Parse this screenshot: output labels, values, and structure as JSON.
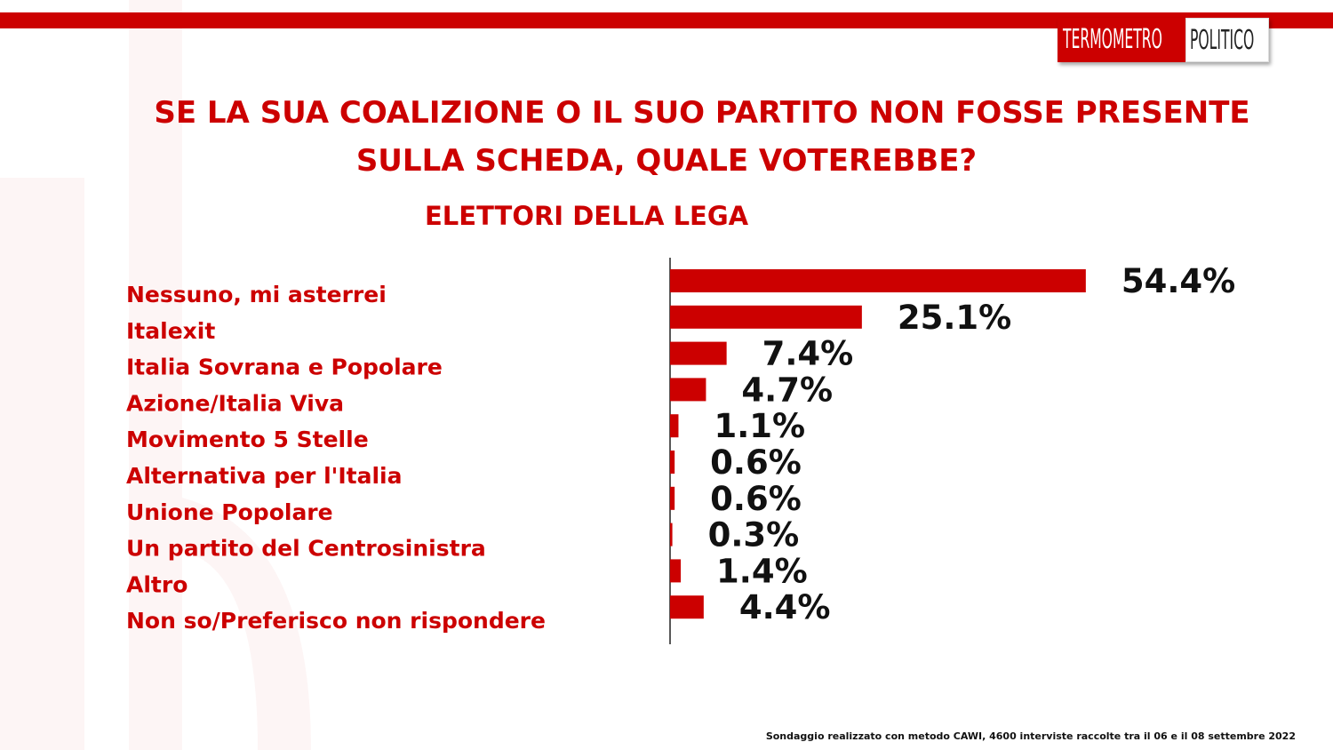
{
  "header": {
    "logo_left": "TERMOMETRO",
    "logo_right": "POLITICO",
    "title": "SE LA SUA COALIZIONE O IL SUO PARTITO NON FOSSE PRESENTE SULLA SCHEDA, QUALE VOTEREBBE?",
    "subtitle": "ELETTORI DELLA LEGA"
  },
  "colors": {
    "accent": "#cc0000",
    "bar": "#cc0000",
    "value_text": "#111111"
  },
  "chart_data": {
    "type": "bar",
    "orientation": "horizontal",
    "categories": [
      "Nessuno, mi asterrei",
      "Italexit",
      "Italia Sovrana e Popolare",
      "Azione/Italia Viva",
      "Movimento 5 Stelle",
      "Alternativa per l'Italia",
      "Unione Popolare",
      "Un partito del Centrosinistra",
      "Altro",
      "Non so/Preferisco non rispondere"
    ],
    "values": [
      54.4,
      25.1,
      7.4,
      4.7,
      1.1,
      0.6,
      0.6,
      0.3,
      1.4,
      4.4
    ],
    "value_labels": [
      "54.4%",
      "25.1%",
      "7.4%",
      "4.7%",
      "1.1%",
      "0.6%",
      "0.6%",
      "0.3%",
      "1.4%",
      "4.4%"
    ],
    "xlim": [
      0,
      100
    ],
    "grid": false,
    "legend": "none"
  },
  "footer": {
    "note": "Sondaggio realizzato con metodo CAWI, 4600 interviste raccolte tra il 06 e il 08 settembre 2022"
  }
}
